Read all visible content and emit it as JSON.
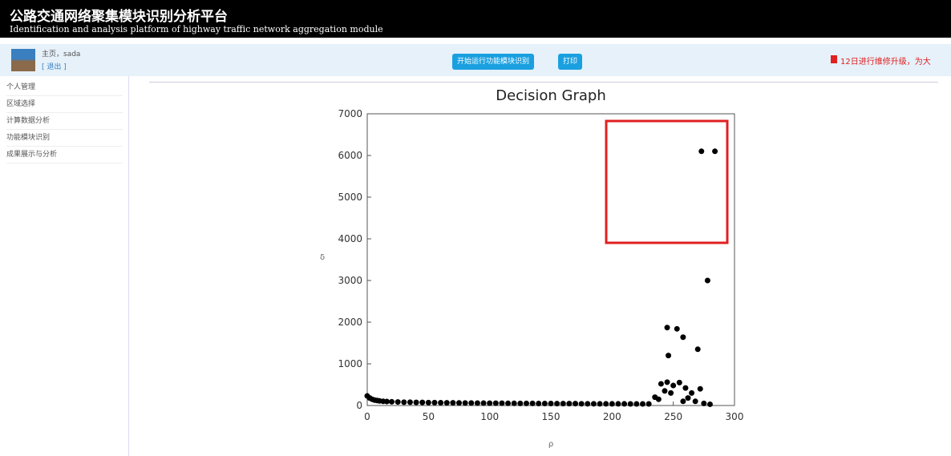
{
  "header": {
    "title": "公路交通网络聚集模块识别分析平台",
    "subtitle": "Identification and analysis platform of highway traffic network aggregation module"
  },
  "user": {
    "greeting": "主页，sada",
    "logout": "[ 退出 ]"
  },
  "toolbar": {
    "buttons": [
      "开始运行功能模块识别",
      "打印"
    ],
    "notice": "12日进行维修升级，为大"
  },
  "sidebar": {
    "items": [
      "个人管理",
      "区域选择",
      "计算数据分析",
      "功能模块识别",
      "成果展示与分析"
    ]
  },
  "chart_data": {
    "type": "scatter",
    "title": "Decision Graph",
    "x_label": "ρ",
    "y_label": "δ",
    "color": "#000000",
    "x": [
      0,
      2,
      4,
      6,
      8,
      10,
      13,
      16,
      20,
      25,
      30,
      35,
      40,
      45,
      50,
      55,
      60,
      65,
      70,
      75,
      80,
      85,
      90,
      95,
      100,
      105,
      110,
      115,
      120,
      125,
      130,
      135,
      140,
      145,
      150,
      155,
      160,
      165,
      170,
      175,
      180,
      185,
      190,
      195,
      200,
      205,
      210,
      215,
      220,
      225,
      230,
      273,
      284,
      278,
      245,
      253,
      258,
      246,
      270,
      240,
      245,
      250,
      255,
      260,
      265,
      272,
      243,
      248,
      235,
      238,
      262,
      268,
      258,
      275,
      280
    ],
    "values": [
      230,
      180,
      150,
      130,
      120,
      110,
      100,
      95,
      90,
      85,
      80,
      80,
      75,
      75,
      70,
      70,
      68,
      65,
      65,
      62,
      60,
      60,
      58,
      58,
      55,
      55,
      55,
      52,
      52,
      50,
      50,
      50,
      48,
      48,
      48,
      45,
      45,
      45,
      45,
      42,
      42,
      42,
      40,
      40,
      40,
      40,
      40,
      38,
      38,
      38,
      38,
      6100,
      6100,
      3000,
      1870,
      1840,
      1640,
      1200,
      1350,
      520,
      560,
      480,
      550,
      420,
      300,
      400,
      350,
      300,
      200,
      150,
      180,
      100,
      100,
      50,
      30
    ],
    "xlim": [
      0,
      300
    ],
    "xticks": [
      0,
      50,
      100,
      150,
      200,
      250,
      300
    ],
    "ylim": [
      0,
      7000
    ],
    "yticks": [
      0,
      1000,
      2000,
      3000,
      4000,
      5000,
      6000,
      7000
    ]
  }
}
